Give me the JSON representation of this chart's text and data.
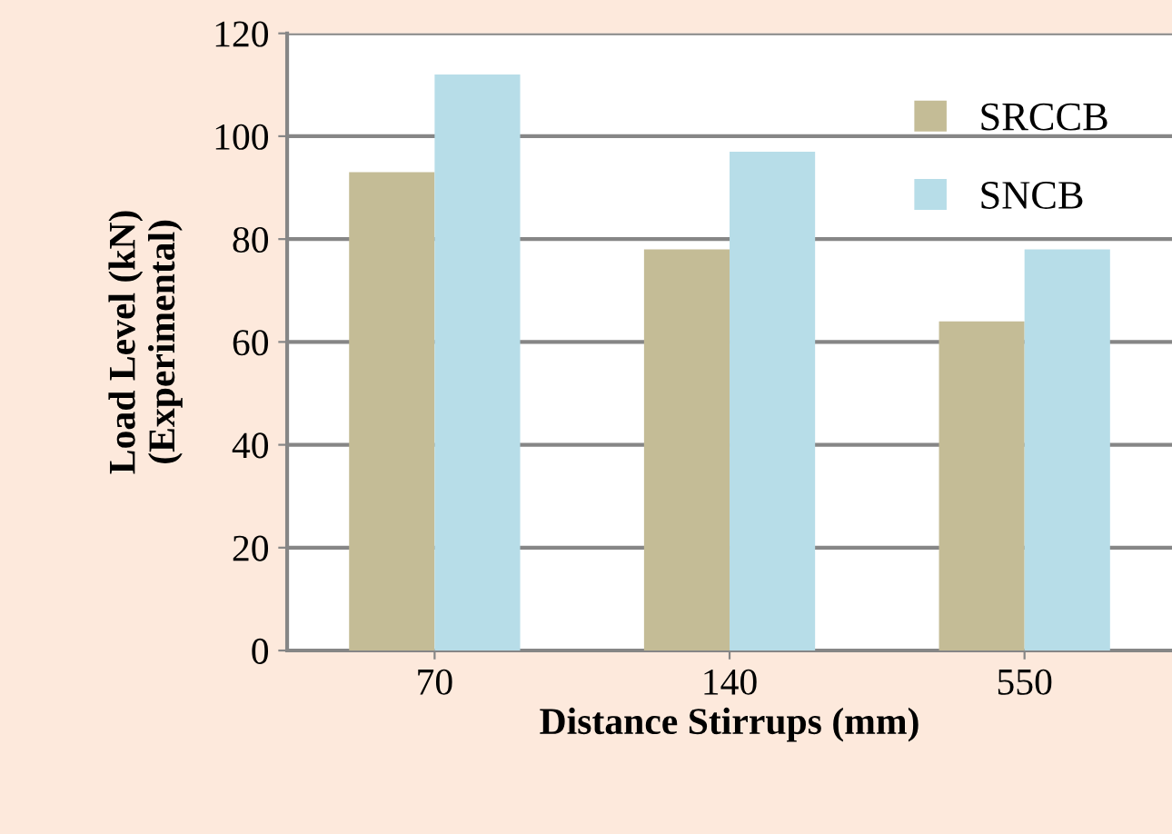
{
  "chart_data": {
    "type": "bar",
    "xlabel": "Distance Stirrups (mm)",
    "ylabel": "Load Level (kN)\n(Experimental)",
    "categories": [
      "70",
      "140",
      "550"
    ],
    "series": [
      {
        "name": "SRCCB",
        "color": "#c4bc96",
        "values": [
          93,
          78,
          64
        ]
      },
      {
        "name": "SNCB",
        "color": "#b7dde8",
        "values": [
          112,
          97,
          78
        ]
      }
    ],
    "ylim": [
      0,
      120
    ],
    "yticks": [
      0,
      20,
      40,
      60,
      80,
      100,
      120
    ],
    "grid": "y",
    "legend": "top right"
  }
}
